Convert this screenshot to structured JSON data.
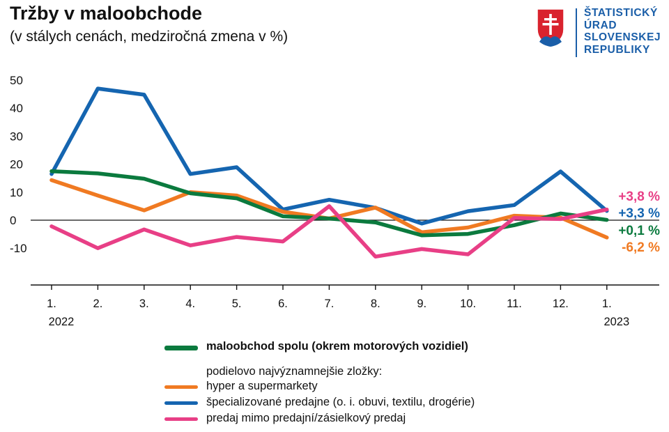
{
  "header": {
    "title": "Tržby v maloobchode",
    "subtitle": "(v stálych cenách, medziročná zmena v %)"
  },
  "logo": {
    "lines": [
      "ŠTATISTICKÝ",
      "ÚRAD",
      "SLOVENSKEJ",
      "REPUBLIKY"
    ],
    "icon": "slovak-coat-of-arms-icon"
  },
  "legend": {
    "intro": "podielovo najvýznamnejšie zložky:"
  },
  "chart_data": {
    "type": "line",
    "title": "Tržby v maloobchode",
    "subtitle": "(v stálych cenách, medziročná zmena v %)",
    "categories": [
      "1.",
      "2.",
      "3.",
      "4.",
      "5.",
      "6.",
      "7.",
      "8.",
      "9.",
      "10.",
      "11.",
      "12.",
      "1."
    ],
    "year_labels": [
      {
        "index": 0,
        "label": "2022"
      },
      {
        "index": 12,
        "label": "2023"
      }
    ],
    "yticks": [
      50,
      40,
      30,
      20,
      10,
      0,
      -10
    ],
    "ylim": [
      -23,
      50
    ],
    "grid": false,
    "zero_line": true,
    "legend_position": "bottom",
    "series": [
      {
        "name": "maloobchod spolu (okrem motorových vozidiel)",
        "color": "#0b7a3e",
        "bold": true,
        "values": [
          17.5,
          16.7,
          14.8,
          9.6,
          7.8,
          1.4,
          0.6,
          -0.8,
          -5.4,
          -4.9,
          -1.8,
          2.4,
          0.1
        ],
        "end_label": "+0,1 %"
      },
      {
        "name": "hyper a supermarkety",
        "color": "#f07a22",
        "values": [
          14.3,
          8.8,
          3.5,
          10.0,
          8.8,
          3.0,
          0.6,
          4.5,
          -4.3,
          -2.6,
          1.6,
          0.9,
          -6.2
        ],
        "end_label": "-6,2 %"
      },
      {
        "name": "špecializované predajne (o. i. obuvi, textilu, drogérie)",
        "color": "#1565b0",
        "values": [
          16.5,
          47.0,
          44.8,
          16.5,
          18.9,
          3.8,
          7.3,
          4.4,
          -1.2,
          3.2,
          5.4,
          17.4,
          3.3
        ],
        "end_label": "+3,3 %"
      },
      {
        "name": "predaj mimo predajní/zásielkový predaj",
        "color": "#e83f86",
        "values": [
          -2.2,
          -10.0,
          -3.3,
          -9.0,
          -6.0,
          -7.6,
          5.0,
          -13.0,
          -10.3,
          -12.2,
          0.8,
          0.4,
          3.8
        ],
        "end_label": "+3,8 %"
      }
    ]
  }
}
